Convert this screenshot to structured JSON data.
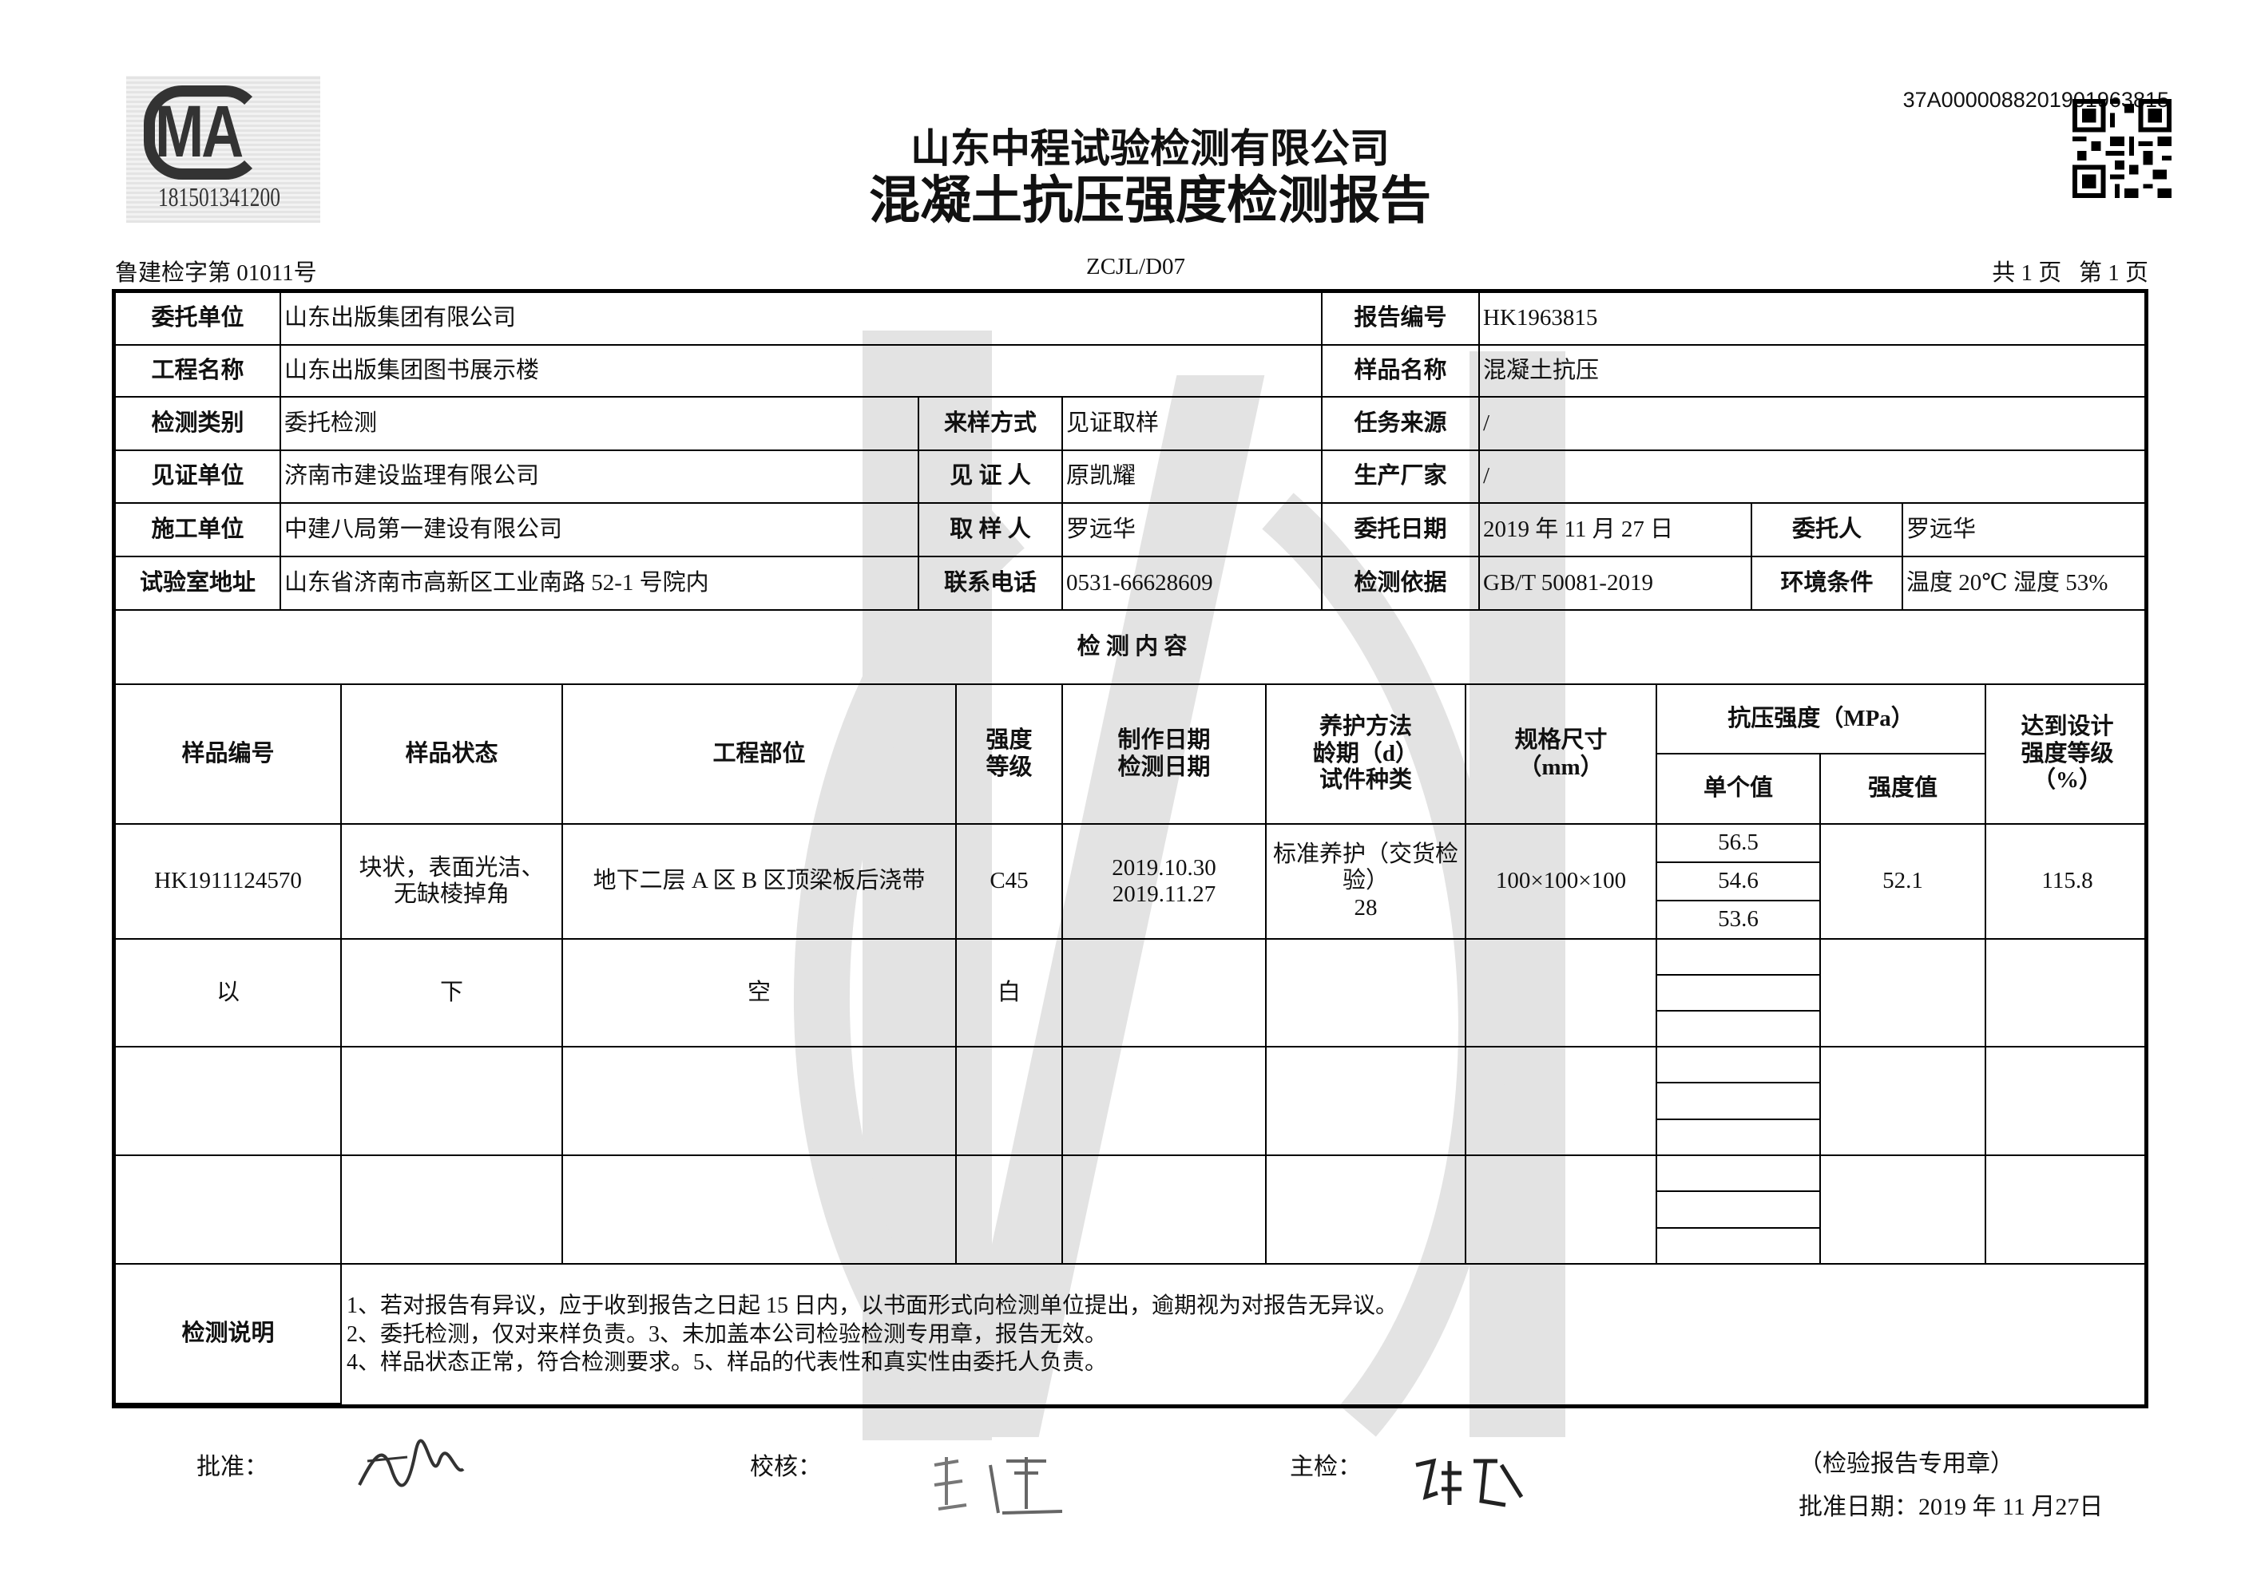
{
  "header": {
    "logo_letters": "CMA",
    "logo_number": "181501341200",
    "company": "山东中程试验检测有限公司",
    "title": "混凝土抗压强度检测报告",
    "serial": "37A0000088201901963815",
    "doc_no": "鲁建检字第 01011号",
    "form_code": "ZCJL/D07",
    "page_info": "共 1 页   第 1 页"
  },
  "info": {
    "client_label": "委托单位",
    "client": "山东出版集团有限公司",
    "report_no_label": "报告编号",
    "report_no": "HK1963815",
    "project_label": "工程名称",
    "project": "山东出版集团图书展示楼",
    "sample_name_label": "样品名称",
    "sample_name": "混凝土抗压",
    "test_type_label": "检测类别",
    "test_type": "委托检测",
    "sampling_method_label": "来样方式",
    "sampling_method": "见证取样",
    "task_source_label": "任务来源",
    "task_source": "/",
    "witness_unit_label": "见证单位",
    "witness_unit": "济南市建设监理有限公司",
    "witness_label": "见 证 人",
    "witness": "原凯耀",
    "manufacturer_label": "生产厂家",
    "manufacturer": "/",
    "contractor_label": "施工单位",
    "contractor": "中建八局第一建设有限公司",
    "sampler_label": "取 样 人",
    "sampler": "罗远华",
    "entrust_date_label": "委托日期",
    "entrust_date": "2019 年 11 月 27 日",
    "entruster_label": "委托人",
    "entruster": "罗远华",
    "lab_address_label": "试验室地址",
    "lab_address": "山东省济南市高新区工业南路 52-1 号院内",
    "phone_label": "联系电话",
    "phone": "0531-66628609",
    "basis_label": "检测依据",
    "basis": "GB/T 50081-2019",
    "env_label": "环境条件",
    "env": "温度 20℃  湿度 53%"
  },
  "content_title": "检  测  内  容",
  "columns": {
    "sample_no": "样品编号",
    "sample_state": "样品状态",
    "location": "工程部位",
    "grade": "强度\n等级",
    "dates": "制作日期\n检测日期",
    "curing": "养护方法\n龄期（d）\n试件种类",
    "size": "规格尺寸\n（mm）",
    "strength": "抗压强度（MPa）",
    "single": "单个值",
    "strength_value": "强度值",
    "percent": "达到设计\n强度等级\n（%）"
  },
  "sample": {
    "sample_no": "HK1911124570",
    "sample_state": "块状，表面光洁、\n无缺棱掉角",
    "location": "地下二层 A 区 B 区顶梁板后浇带",
    "grade": "C45",
    "dates": "2019.10.30\n2019.11.27",
    "curing": "标准养护（交货检\n验）\n28",
    "size": "100×100×100",
    "singles": [
      "56.5",
      "54.6",
      "53.6"
    ],
    "strength_value": "52.1",
    "percent": "115.8"
  },
  "blank_marker": [
    "以",
    "下",
    "空",
    "白"
  ],
  "notes_label": "检测说明",
  "notes": [
    "1、若对报告有异议，应于收到报告之日起 15 日内，以书面形式向检测单位提出，逾期视为对报告无异议。",
    "2、委托检测，仅对来样负责。3、未加盖本公司检验检测专用章，报告无效。",
    "4、样品状态正常，符合检测要求。5、样品的代表性和真实性由委托人负责。"
  ],
  "footer": {
    "approve_label": "批准：",
    "review_label": "校核：",
    "chief_label": "主检：",
    "stamp_text": "（检验报告专用章）",
    "approve_date": "批准日期：2019 年 11 月27日"
  }
}
